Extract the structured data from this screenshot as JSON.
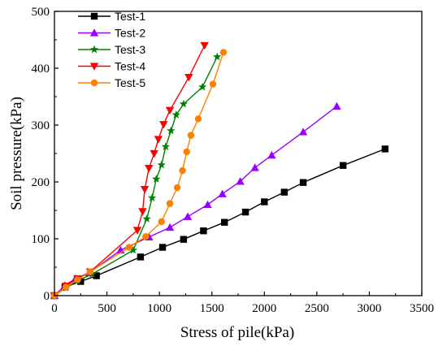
{
  "chart_data": {
    "type": "line",
    "xlabel": "Stress of pile(kPa)",
    "ylabel": "Soil pressure(kPa)",
    "xlim": [
      0,
      3500
    ],
    "ylim": [
      0,
      500
    ],
    "xticks": [
      0,
      500,
      1000,
      1500,
      2000,
      2500,
      3000,
      3500
    ],
    "yticks": [
      0,
      100,
      200,
      300,
      400,
      500
    ],
    "grid": false,
    "legend_position": "top-left",
    "series": [
      {
        "name": "Test-1",
        "color": "#000000",
        "marker": "square",
        "x": [
          0,
          100,
          250,
          400,
          820,
          1030,
          1230,
          1420,
          1620,
          1820,
          2000,
          2190,
          2370,
          2750,
          3150
        ],
        "y": [
          0,
          15,
          25,
          35,
          68,
          85,
          99,
          114,
          129,
          147,
          165,
          182,
          199,
          229,
          258
        ]
      },
      {
        "name": "Test-2",
        "color": "#9900ff",
        "marker": "triangle-up",
        "x": [
          0,
          100,
          200,
          330,
          630,
          900,
          1100,
          1270,
          1460,
          1600,
          1770,
          1910,
          2070,
          2370,
          2690
        ],
        "y": [
          0,
          18,
          30,
          40,
          80,
          103,
          120,
          139,
          160,
          179,
          201,
          225,
          247,
          288,
          333
        ]
      },
      {
        "name": "Test-3",
        "color": "#008000",
        "marker": "star",
        "x": [
          0,
          110,
          220,
          360,
          750,
          880,
          930,
          970,
          1020,
          1060,
          1110,
          1160,
          1230,
          1410,
          1550
        ],
        "y": [
          0,
          14,
          26,
          38,
          80,
          135,
          172,
          205,
          230,
          262,
          290,
          318,
          337,
          367,
          420
        ]
      },
      {
        "name": "Test-4",
        "color": "#ff0000",
        "marker": "triangle-down",
        "x": [
          0,
          110,
          220,
          340,
          790,
          840,
          860,
          900,
          950,
          990,
          1040,
          1100,
          1280,
          1430
        ],
        "y": [
          0,
          17,
          30,
          42,
          115,
          148,
          187,
          224,
          250,
          275,
          301,
          326,
          384,
          440
        ]
      },
      {
        "name": "Test-5",
        "color": "#ff8000",
        "marker": "circle",
        "x": [
          0,
          110,
          220,
          340,
          710,
          870,
          1020,
          1100,
          1170,
          1220,
          1260,
          1300,
          1370,
          1510,
          1610
        ],
        "y": [
          0,
          15,
          28,
          42,
          85,
          104,
          130,
          162,
          190,
          220,
          253,
          282,
          311,
          372,
          428
        ]
      }
    ]
  }
}
